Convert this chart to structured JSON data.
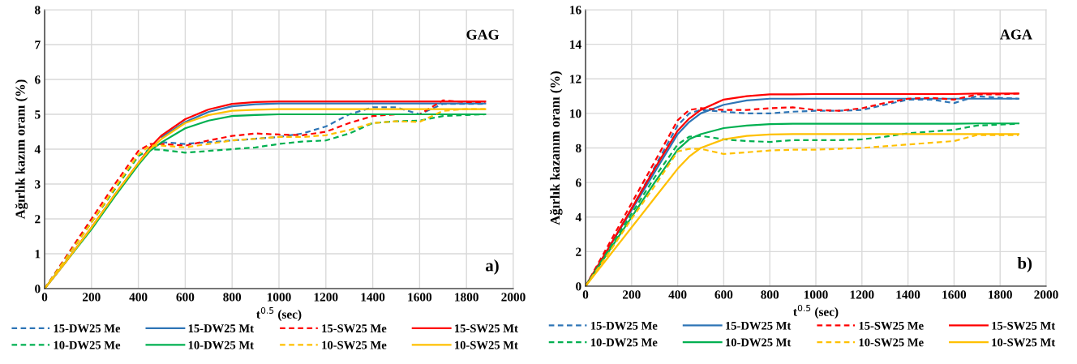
{
  "chart_data": [
    {
      "type": "line",
      "ylabel": "Ağırlık kazım oranı (%)",
      "xlabel": "t$^{0.5}$ (sec)",
      "annotations": [
        "GAG",
        "a)"
      ],
      "xlim": [
        0,
        2000
      ],
      "xticks": [
        0,
        200,
        400,
        600,
        800,
        1000,
        1200,
        1400,
        1600,
        1800,
        2000
      ],
      "ylim": [
        0,
        8
      ],
      "yticks": [
        0,
        1,
        2,
        3,
        4,
        5,
        6,
        7,
        8
      ],
      "grid": true,
      "legend": "bottom",
      "marker": "none",
      "x": [
        0,
        100,
        200,
        300,
        400,
        450,
        500,
        600,
        700,
        800,
        900,
        1000,
        1100,
        1200,
        1300,
        1400,
        1500,
        1600,
        1700,
        1800,
        1880
      ],
      "series": [
        {
          "name": "15-DW25 Me",
          "color": "#2e75b6",
          "line_style": "dashed",
          "values": [
            null,
            null,
            null,
            null,
            null,
            null,
            4.2,
            4.15,
            4.2,
            4.25,
            4.3,
            4.35,
            4.45,
            4.65,
            5.0,
            5.2,
            5.2,
            5.0,
            5.3,
            5.3,
            5.3
          ]
        },
        {
          "name": "15-DW25 Mt",
          "color": "#2e75b6",
          "line_style": "solid",
          "values": [
            null,
            null,
            null,
            null,
            null,
            null,
            4.35,
            4.78,
            5.07,
            5.23,
            5.29,
            5.31,
            5.31,
            5.31,
            5.31,
            5.31,
            5.31,
            5.31,
            5.31,
            5.31,
            5.31
          ]
        },
        {
          "name": "15-SW25 Me",
          "color": "#ff0000",
          "line_style": "dashed",
          "values": [
            0,
            1.0,
            2.0,
            3.0,
            3.95,
            4.15,
            4.15,
            4.1,
            4.25,
            4.38,
            4.45,
            4.42,
            4.4,
            4.5,
            4.75,
            4.95,
            5.0,
            5.0,
            5.4,
            5.35,
            5.35
          ]
        },
        {
          "name": "15-SW25 Mt",
          "color": "#ff0000",
          "line_style": "solid",
          "values": [
            0,
            0.85,
            1.75,
            2.7,
            3.6,
            4.05,
            4.4,
            4.86,
            5.14,
            5.3,
            5.35,
            5.37,
            5.37,
            5.37,
            5.37,
            5.37,
            5.37,
            5.37,
            5.37,
            5.37,
            5.37
          ]
        },
        {
          "name": "10-DW25 Me",
          "color": "#00b050",
          "line_style": "dashed",
          "values": [
            0,
            0.95,
            1.9,
            2.85,
            3.8,
            4.0,
            3.98,
            3.9,
            3.95,
            4.0,
            4.05,
            4.15,
            4.22,
            4.25,
            4.45,
            4.75,
            4.8,
            4.82,
            4.95,
            4.98,
            5.0
          ]
        },
        {
          "name": "10-DW25 Mt",
          "color": "#00b050",
          "line_style": "solid",
          "values": [
            0,
            0.85,
            1.7,
            2.65,
            3.55,
            3.95,
            4.2,
            4.6,
            4.82,
            4.95,
            4.98,
            5.0,
            5.0,
            5.0,
            5.0,
            5.0,
            5.0,
            5.0,
            5.0,
            5.0,
            5.0
          ]
        },
        {
          "name": "10-SW25 Me",
          "color": "#ffc000",
          "line_style": "dashed",
          "values": [
            0,
            0.95,
            1.9,
            2.9,
            3.85,
            4.1,
            4.1,
            4.05,
            4.15,
            4.25,
            4.3,
            4.35,
            4.35,
            4.4,
            4.55,
            4.75,
            4.8,
            4.78,
            5.1,
            5.15,
            5.15
          ]
        },
        {
          "name": "10-SW25 Mt",
          "color": "#ffc000",
          "line_style": "solid",
          "values": [
            0,
            0.85,
            1.75,
            2.7,
            3.6,
            4.0,
            4.3,
            4.75,
            4.98,
            5.1,
            5.13,
            5.15,
            5.15,
            5.15,
            5.15,
            5.15,
            5.15,
            5.15,
            5.15,
            5.15,
            5.15
          ]
        }
      ]
    },
    {
      "type": "line",
      "ylabel": "Ağırlık kazanım oranı (%)",
      "xlabel": "t$^{0.5}$ (sec)",
      "annotations": [
        "AGA",
        "b)"
      ],
      "xlim": [
        0,
        2000
      ],
      "xticks": [
        0,
        200,
        400,
        600,
        800,
        1000,
        1200,
        1400,
        1600,
        1800,
        2000
      ],
      "ylim": [
        0,
        16
      ],
      "yticks": [
        0,
        2,
        4,
        6,
        8,
        10,
        12,
        14,
        16
      ],
      "grid": true,
      "legend": "bottom",
      "marker": "none",
      "x": [
        0,
        100,
        200,
        300,
        400,
        450,
        500,
        600,
        700,
        800,
        900,
        1000,
        1100,
        1200,
        1300,
        1400,
        1500,
        1600,
        1700,
        1800,
        1880
      ],
      "series": [
        {
          "name": "15-DW25 Me",
          "color": "#2e75b6",
          "line_style": "dashed",
          "values": [
            0,
            2.2,
            4.5,
            6.9,
            9.3,
            10.0,
            10.2,
            10.1,
            10.0,
            10.0,
            10.1,
            10.15,
            10.15,
            10.2,
            10.5,
            10.8,
            10.8,
            10.6,
            11.0,
            10.9,
            10.85
          ]
        },
        {
          "name": "15-DW25 Mt",
          "color": "#2e75b6",
          "line_style": "solid",
          "values": [
            0,
            2.2,
            4.4,
            6.6,
            8.8,
            9.5,
            10.0,
            10.5,
            10.75,
            10.85,
            10.85,
            10.85,
            10.85,
            10.85,
            10.85,
            10.85,
            10.85,
            10.85,
            10.85,
            10.85,
            10.85
          ]
        },
        {
          "name": "15-SW25 Me",
          "color": "#ff0000",
          "line_style": "dashed",
          "values": [
            0,
            2.4,
            4.8,
            7.2,
            9.6,
            10.2,
            10.3,
            10.2,
            10.2,
            10.3,
            10.35,
            10.2,
            10.15,
            10.3,
            10.6,
            10.85,
            10.9,
            10.8,
            11.1,
            11.1,
            11.15
          ]
        },
        {
          "name": "15-SW25 Mt",
          "color": "#ff0000",
          "line_style": "solid",
          "values": [
            0,
            2.2,
            4.5,
            6.8,
            9.0,
            9.7,
            10.2,
            10.8,
            11.0,
            11.1,
            11.1,
            11.12,
            11.12,
            11.12,
            11.12,
            11.12,
            11.12,
            11.12,
            11.15,
            11.15,
            11.15
          ]
        },
        {
          "name": "10-DW25 Me",
          "color": "#00b050",
          "line_style": "dashed",
          "values": [
            0,
            2.1,
            4.2,
            6.3,
            8.2,
            8.65,
            8.7,
            8.5,
            8.4,
            8.35,
            8.45,
            8.45,
            8.45,
            8.5,
            8.65,
            8.85,
            8.95,
            9.05,
            9.3,
            9.35,
            9.4
          ]
        },
        {
          "name": "10-DW25 Mt",
          "color": "#00b050",
          "line_style": "solid",
          "values": [
            0,
            2.0,
            4.0,
            6.0,
            7.9,
            8.5,
            8.8,
            9.15,
            9.3,
            9.38,
            9.4,
            9.4,
            9.4,
            9.4,
            9.4,
            9.4,
            9.4,
            9.4,
            9.42,
            9.42,
            9.42
          ]
        },
        {
          "name": "10-SW25 Me",
          "color": "#ffc000",
          "line_style": "dashed",
          "values": [
            0,
            1.9,
            3.9,
            5.8,
            7.8,
            7.95,
            7.95,
            7.65,
            7.75,
            7.85,
            7.9,
            7.9,
            7.95,
            8.0,
            8.1,
            8.2,
            8.3,
            8.4,
            8.75,
            8.75,
            8.75
          ]
        },
        {
          "name": "10-SW25 Mt",
          "color": "#ffc000",
          "line_style": "solid",
          "values": [
            0,
            1.7,
            3.4,
            5.1,
            6.8,
            7.5,
            8.0,
            8.5,
            8.7,
            8.78,
            8.8,
            8.8,
            8.8,
            8.8,
            8.8,
            8.8,
            8.8,
            8.8,
            8.8,
            8.8,
            8.8
          ]
        }
      ]
    }
  ]
}
